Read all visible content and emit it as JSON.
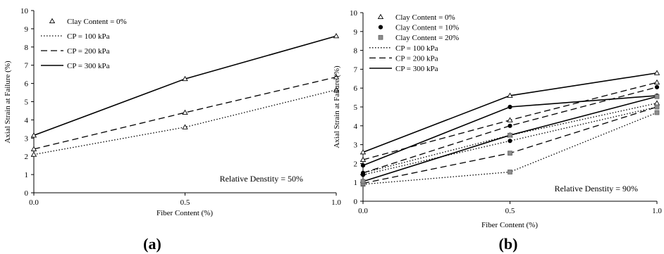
{
  "chart_data": [
    {
      "panel": "(a)",
      "type": "line",
      "xlabel": "Fiber Content (%)",
      "ylabel": "Axial Strain at Failure (%)",
      "xlim": [
        0,
        1
      ],
      "ylim": [
        0,
        10
      ],
      "xticks": [
        "0.0",
        "0.5",
        "1.0"
      ],
      "yticks": [
        "0",
        "1",
        "2",
        "3",
        "4",
        "5",
        "6",
        "7",
        "8",
        "9",
        "10"
      ],
      "grid": false,
      "legend_position": "top-left",
      "annotation": "Relative Denstity = 50%",
      "x": [
        0,
        0.5,
        1
      ],
      "series": [
        {
          "name": "CP = 100 kPa",
          "line": "dotted",
          "values": [
            2.1,
            3.6,
            5.65
          ]
        },
        {
          "name": "CP = 200 kPa",
          "line": "dashed",
          "values": [
            2.4,
            4.4,
            6.35
          ]
        },
        {
          "name": "CP = 300 kPa",
          "line": "solid",
          "values": [
            3.15,
            6.25,
            8.6
          ]
        }
      ],
      "legend_entries": [
        {
          "label": "Clay Content = 0%",
          "marker": "triangle-open"
        },
        {
          "label": "CP = 100 kPa",
          "line": "dotted"
        },
        {
          "label": "CP = 200 kPa",
          "line": "dashed"
        },
        {
          "label": "CP = 300 kPa",
          "line": "solid"
        }
      ]
    },
    {
      "panel": "(b)",
      "type": "line",
      "xlabel": "Fiber Content (%)",
      "ylabel": "Axial Strain at Failure (%)",
      "xlim": [
        0,
        1
      ],
      "ylim": [
        0,
        10
      ],
      "xticks": [
        "0.0",
        "0.5",
        "1.0"
      ],
      "yticks": [
        "0",
        "1",
        "2",
        "3",
        "4",
        "5",
        "6",
        "7",
        "8",
        "9",
        "10"
      ],
      "grid": false,
      "legend_position": "top-left",
      "annotation": "Relative Denstity = 90%",
      "x": [
        0,
        0.5,
        1
      ],
      "series": [
        {
          "name": "Clay Content = 0%, CP = 100 kPa",
          "line": "dotted",
          "marker": "triangle-open",
          "values": [
            1.5,
            3.5,
            5.2
          ]
        },
        {
          "name": "Clay Content = 0%, CP = 200 kPa",
          "line": "dashed",
          "marker": "triangle-open",
          "values": [
            2.2,
            4.3,
            6.3
          ]
        },
        {
          "name": "Clay Content = 0%, CP = 300 kPa",
          "line": "solid",
          "marker": "triangle-open",
          "values": [
            2.6,
            5.6,
            6.8
          ]
        },
        {
          "name": "Clay Content = 10%, CP = 100 kPa",
          "line": "dotted",
          "marker": "circle-filled",
          "values": [
            1.4,
            3.2,
            5.0
          ]
        },
        {
          "name": "Clay Content = 10%, CP = 200 kPa",
          "line": "dashed",
          "marker": "circle-filled",
          "values": [
            1.5,
            4.0,
            6.05
          ]
        },
        {
          "name": "Clay Content = 10%, CP = 300 kPa",
          "line": "solid",
          "marker": "circle-filled",
          "values": [
            1.9,
            5.0,
            5.6
          ]
        },
        {
          "name": "Clay Content = 20%, CP = 100 kPa",
          "line": "dotted",
          "marker": "square-filled",
          "values": [
            0.9,
            1.55,
            4.7
          ]
        },
        {
          "name": "Clay Content = 20%, CP = 200 kPa",
          "line": "dashed",
          "marker": "square-filled",
          "values": [
            0.95,
            2.55,
            5.0
          ]
        },
        {
          "name": "Clay Content = 20%, CP = 300 kPa",
          "line": "solid",
          "marker": "square-filled",
          "values": [
            1.05,
            3.5,
            5.55
          ]
        }
      ],
      "legend_entries": [
        {
          "label": "Clay Content = 0%",
          "marker": "triangle-open"
        },
        {
          "label": "Clay Content = 10%",
          "marker": "circle-filled"
        },
        {
          "label": "Clay Content = 20%",
          "marker": "square-filled"
        },
        {
          "label": "CP = 100 kPa",
          "line": "dotted"
        },
        {
          "label": "CP = 200 kPa",
          "line": "dashed"
        },
        {
          "label": "CP = 300 kPa",
          "line": "solid"
        }
      ]
    }
  ],
  "colors": {
    "line": "#000000",
    "axis": "#000000",
    "marker_square_fill": "#8c8c8c"
  }
}
